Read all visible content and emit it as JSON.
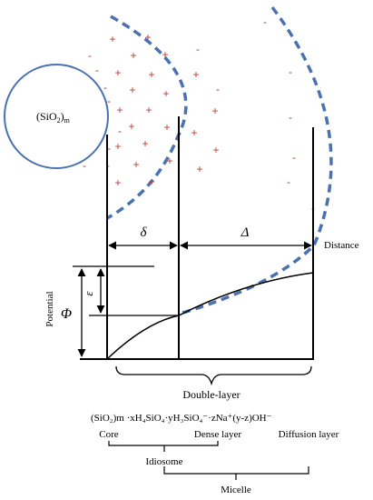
{
  "core_label": "(SiO",
  "core_label_sub2": "2",
  "core_label_close": ")",
  "core_label_subm": "m",
  "delta": "δ",
  "Delta": "Δ",
  "distance": "Distance",
  "potential": "Potential",
  "phi": "Φ",
  "epsilon": "ε",
  "double_layer": "Double-layer",
  "formula": "(SiO₂)m ·xH₄SiO₄·yH₃SiO₄⁻·zNa⁺(y-z)OH⁻",
  "core": "Core",
  "dense_layer": "Dense layer",
  "diffusion_layer": "Diffusion layer",
  "idiosome": "Idiosome",
  "micelle": "Micelle",
  "plus_sign": "+",
  "minus_sign": "-",
  "colors": {
    "circle": "#4a72b0",
    "dashed": "#4a72b0",
    "charge": "#c0392b"
  }
}
